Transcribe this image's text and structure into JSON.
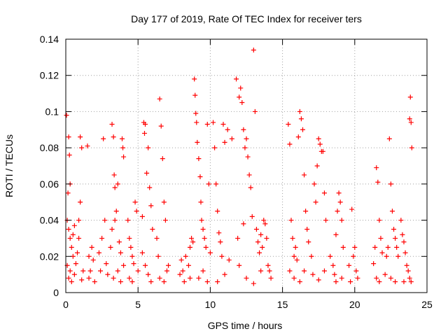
{
  "chart_data": {
    "type": "scatter",
    "title": "Day 177 of 2019, Rate Of TEC Index for receiver ters",
    "xlabel": "GPS time / hours",
    "ylabel": "ROTI / TECUs",
    "xlim": [
      0,
      25
    ],
    "ylim": [
      0,
      0.14
    ],
    "x_ticks": [
      0,
      5,
      10,
      15,
      20,
      25
    ],
    "x_tick_labels": [
      "0",
      "5",
      "10",
      "15",
      "20",
      "25"
    ],
    "y_ticks": [
      0,
      0.02,
      0.04,
      0.06,
      0.08,
      0.1,
      0.12,
      0.14
    ],
    "y_tick_labels": [
      "0",
      "0.02",
      "0.04",
      "0.06",
      "0.08",
      "0.1",
      "0.12",
      "0.14"
    ],
    "grid": true,
    "marker": "+",
    "marker_color": "#ff0000",
    "series": [
      {
        "name": "ROTI",
        "points": [
          [
            0.05,
            0.098
          ],
          [
            0.2,
            0.086
          ],
          [
            0.25,
            0.076
          ],
          [
            0.3,
            0.06
          ],
          [
            0.15,
            0.055
          ],
          [
            0.1,
            0.04
          ],
          [
            0.2,
            0.035
          ],
          [
            0.3,
            0.03
          ],
          [
            0.4,
            0.025
          ],
          [
            0.5,
            0.02
          ],
          [
            0.1,
            0.015
          ],
          [
            0.3,
            0.012
          ],
          [
            0.2,
            0.008
          ],
          [
            0.4,
            0.006
          ],
          [
            0.6,
            0.01
          ],
          [
            0.7,
            0.016
          ],
          [
            0.8,
            0.022
          ],
          [
            0.9,
            0.03
          ],
          [
            1.0,
            0.086
          ],
          [
            1.1,
            0.08
          ],
          [
            1.0,
            0.05
          ],
          [
            0.9,
            0.04
          ],
          [
            1.2,
            0.012
          ],
          [
            1.1,
            0.007
          ],
          [
            0.5,
            0.032
          ],
          [
            0.6,
            0.037
          ],
          [
            1.5,
            0.081
          ],
          [
            1.7,
            0.012
          ],
          [
            1.6,
            0.02
          ],
          [
            1.8,
            0.025
          ],
          [
            1.9,
            0.018
          ],
          [
            1.6,
            0.008
          ],
          [
            2.0,
            0.006
          ],
          [
            2.3,
            0.022
          ],
          [
            2.4,
            0.012
          ],
          [
            2.5,
            0.03
          ],
          [
            2.6,
            0.085
          ],
          [
            2.7,
            0.04
          ],
          [
            2.8,
            0.016
          ],
          [
            2.9,
            0.01
          ],
          [
            3.1,
            0.025
          ],
          [
            3.2,
            0.093
          ],
          [
            3.3,
            0.086
          ],
          [
            3.35,
            0.065
          ],
          [
            3.4,
            0.058
          ],
          [
            3.5,
            0.045
          ],
          [
            3.6,
            0.06
          ],
          [
            3.7,
            0.028
          ],
          [
            3.8,
            0.022
          ],
          [
            3.9,
            0.085
          ],
          [
            3.95,
            0.08
          ],
          [
            4.0,
            0.075
          ],
          [
            4.0,
            0.015
          ],
          [
            3.3,
            0.008
          ],
          [
            3.6,
            0.012
          ],
          [
            3.8,
            0.006
          ],
          [
            3.2,
            0.035
          ],
          [
            3.4,
            0.04
          ],
          [
            4.3,
            0.04
          ],
          [
            4.4,
            0.03
          ],
          [
            4.5,
            0.025
          ],
          [
            4.6,
            0.02
          ],
          [
            4.7,
            0.016
          ],
          [
            4.8,
            0.05
          ],
          [
            4.9,
            0.045
          ],
          [
            5.0,
            0.012
          ],
          [
            4.4,
            0.008
          ],
          [
            4.6,
            0.006
          ],
          [
            5.3,
            0.042
          ],
          [
            5.4,
            0.094
          ],
          [
            5.45,
            0.088
          ],
          [
            5.5,
            0.093
          ],
          [
            5.6,
            0.066
          ],
          [
            5.7,
            0.08
          ],
          [
            5.8,
            0.058
          ],
          [
            5.9,
            0.048
          ],
          [
            6.0,
            0.035
          ],
          [
            5.5,
            0.015
          ],
          [
            5.7,
            0.01
          ],
          [
            5.9,
            0.006
          ],
          [
            5.3,
            0.022
          ],
          [
            6.3,
            0.03
          ],
          [
            6.4,
            0.02
          ],
          [
            6.5,
            0.107
          ],
          [
            6.6,
            0.092
          ],
          [
            6.7,
            0.074
          ],
          [
            6.8,
            0.05
          ],
          [
            6.9,
            0.04
          ],
          [
            7.0,
            0.012
          ],
          [
            6.5,
            0.008
          ],
          [
            6.8,
            0.006
          ],
          [
            7.1,
            0.015
          ],
          [
            7.9,
            0.01
          ],
          [
            8.0,
            0.018
          ],
          [
            8.1,
            0.012
          ],
          [
            8.2,
            0.006
          ],
          [
            8.3,
            0.02
          ],
          [
            8.5,
            0.015
          ],
          [
            8.6,
            0.025
          ],
          [
            8.7,
            0.03
          ],
          [
            8.6,
            0.008
          ],
          [
            8.8,
            0.028
          ],
          [
            8.9,
            0.118
          ],
          [
            8.95,
            0.109
          ],
          [
            9.0,
            0.099
          ],
          [
            9.05,
            0.094
          ],
          [
            9.1,
            0.083
          ],
          [
            9.2,
            0.074
          ],
          [
            9.3,
            0.064
          ],
          [
            9.35,
            0.05
          ],
          [
            9.4,
            0.04
          ],
          [
            9.5,
            0.035
          ],
          [
            9.6,
            0.03
          ],
          [
            9.7,
            0.025
          ],
          [
            9.8,
            0.093
          ],
          [
            9.9,
            0.06
          ],
          [
            10.0,
            0.022
          ],
          [
            9.2,
            0.008
          ],
          [
            9.5,
            0.012
          ],
          [
            9.8,
            0.006
          ],
          [
            10.2,
            0.094
          ],
          [
            10.3,
            0.08
          ],
          [
            10.4,
            0.06
          ],
          [
            10.5,
            0.045
          ],
          [
            10.6,
            0.033
          ],
          [
            10.7,
            0.028
          ],
          [
            10.8,
            0.02
          ],
          [
            10.9,
            0.093
          ],
          [
            11.0,
            0.083
          ],
          [
            11.2,
            0.09
          ],
          [
            11.5,
            0.085
          ],
          [
            11.3,
            0.018
          ],
          [
            11.0,
            0.01
          ],
          [
            10.5,
            0.006
          ],
          [
            11.8,
            0.118
          ],
          [
            12.0,
            0.108
          ],
          [
            12.1,
            0.113
          ],
          [
            12.2,
            0.105
          ],
          [
            12.3,
            0.09
          ],
          [
            12.4,
            0.08
          ],
          [
            12.5,
            0.085
          ],
          [
            12.6,
            0.075
          ],
          [
            12.7,
            0.065
          ],
          [
            12.8,
            0.058
          ],
          [
            12.9,
            0.042
          ],
          [
            13.0,
            0.134
          ],
          [
            13.1,
            0.1
          ],
          [
            13.2,
            0.035
          ],
          [
            13.3,
            0.028
          ],
          [
            13.4,
            0.022
          ],
          [
            13.5,
            0.032
          ],
          [
            13.6,
            0.025
          ],
          [
            13.7,
            0.04
          ],
          [
            13.8,
            0.038
          ],
          [
            13.9,
            0.03
          ],
          [
            14.0,
            0.015
          ],
          [
            14.1,
            0.012
          ],
          [
            14.2,
            0.008
          ],
          [
            12.0,
            0.015
          ],
          [
            12.5,
            0.008
          ],
          [
            13.0,
            0.005
          ],
          [
            13.5,
            0.012
          ],
          [
            11.9,
            0.03
          ],
          [
            12.3,
            0.038
          ],
          [
            15.4,
            0.093
          ],
          [
            15.5,
            0.082
          ],
          [
            15.6,
            0.04
          ],
          [
            15.7,
            0.03
          ],
          [
            15.8,
            0.02
          ],
          [
            15.9,
            0.025
          ],
          [
            16.0,
            0.018
          ],
          [
            16.1,
            0.086
          ],
          [
            16.2,
            0.1
          ],
          [
            16.3,
            0.096
          ],
          [
            16.4,
            0.09
          ],
          [
            16.5,
            0.065
          ],
          [
            16.6,
            0.045
          ],
          [
            16.7,
            0.035
          ],
          [
            15.5,
            0.012
          ],
          [
            15.8,
            0.008
          ],
          [
            16.2,
            0.006
          ],
          [
            16.5,
            0.012
          ],
          [
            16.8,
            0.028
          ],
          [
            17.0,
            0.02
          ],
          [
            17.2,
            0.06
          ],
          [
            17.3,
            0.05
          ],
          [
            17.4,
            0.07
          ],
          [
            17.5,
            0.085
          ],
          [
            17.6,
            0.082
          ],
          [
            17.7,
            0.078
          ],
          [
            17.8,
            0.078
          ],
          [
            17.9,
            0.055
          ],
          [
            18.0,
            0.04
          ],
          [
            17.1,
            0.01
          ],
          [
            17.5,
            0.007
          ],
          [
            17.9,
            0.012
          ],
          [
            18.3,
            0.02
          ],
          [
            18.5,
            0.015
          ],
          [
            18.6,
            0.01
          ],
          [
            18.7,
            0.032
          ],
          [
            18.8,
            0.045
          ],
          [
            18.9,
            0.055
          ],
          [
            19.0,
            0.05
          ],
          [
            19.1,
            0.04
          ],
          [
            19.2,
            0.025
          ],
          [
            18.7,
            0.006
          ],
          [
            19.1,
            0.008
          ],
          [
            19.6,
            0.015
          ],
          [
            19.8,
            0.046
          ],
          [
            19.9,
            0.02
          ],
          [
            20.0,
            0.025
          ],
          [
            20.1,
            0.012
          ],
          [
            20.2,
            0.008
          ],
          [
            19.7,
            0.006
          ],
          [
            21.3,
            0.016
          ],
          [
            21.4,
            0.025
          ],
          [
            21.5,
            0.069
          ],
          [
            21.6,
            0.061
          ],
          [
            21.7,
            0.04
          ],
          [
            21.8,
            0.03
          ],
          [
            21.9,
            0.022
          ],
          [
            21.5,
            0.008
          ],
          [
            21.7,
            0.006
          ],
          [
            22.1,
            0.01
          ],
          [
            22.2,
            0.02
          ],
          [
            22.3,
            0.025
          ],
          [
            22.4,
            0.085
          ],
          [
            22.5,
            0.06
          ],
          [
            22.6,
            0.045
          ],
          [
            22.7,
            0.035
          ],
          [
            22.8,
            0.03
          ],
          [
            22.9,
            0.025
          ],
          [
            23.0,
            0.02
          ],
          [
            22.5,
            0.008
          ],
          [
            22.8,
            0.006
          ],
          [
            23.2,
            0.04
          ],
          [
            23.3,
            0.032
          ],
          [
            23.4,
            0.028
          ],
          [
            23.5,
            0.022
          ],
          [
            23.6,
            0.015
          ],
          [
            23.7,
            0.012
          ],
          [
            23.8,
            0.096
          ],
          [
            23.85,
            0.108
          ],
          [
            23.9,
            0.094
          ],
          [
            23.95,
            0.08
          ],
          [
            23.8,
            0.008
          ],
          [
            23.9,
            0.006
          ],
          [
            23.4,
            0.006
          ]
        ]
      }
    ]
  }
}
